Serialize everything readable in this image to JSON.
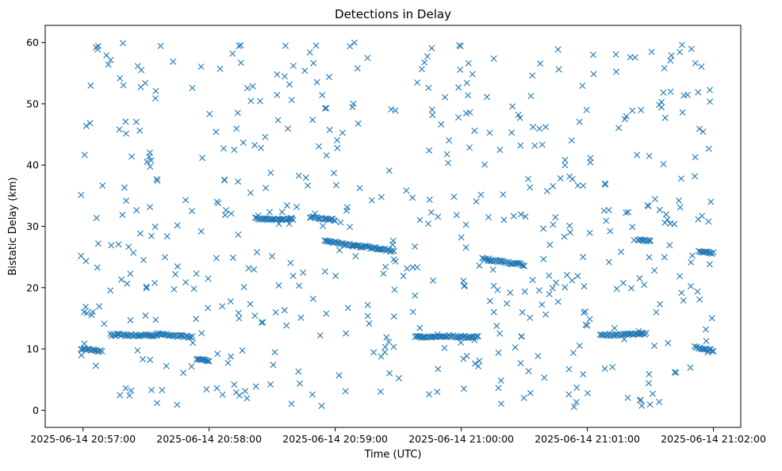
{
  "chart_data": {
    "type": "scatter",
    "title": "Detections in Delay",
    "xlabel": "Time (UTC)",
    "ylabel": "Bistatic Delay (km)",
    "x_axis_type": "datetime",
    "xlim": [
      "2025-06-14 20:56:42",
      "2025-06-14 21:02:13"
    ],
    "ylim": [
      -2.8,
      62.8
    ],
    "x_ticks": [
      "2025-06-14 20:57:00",
      "2025-06-14 20:58:00",
      "2025-06-14 20:59:00",
      "2025-06-14 21:00:00",
      "2025-06-14 21:01:00",
      "2025-06-14 21:02:00"
    ],
    "y_ticks": [
      0,
      10,
      20,
      30,
      40,
      50,
      60
    ],
    "grid": false,
    "marker": "x",
    "color": "#1f77b4",
    "tracks": [
      {
        "x_start": "2025-06-14 20:56:59",
        "x_end": "2025-06-14 20:57:09",
        "y_start": 10.0,
        "y_end": 9.6
      },
      {
        "x_start": "2025-06-14 20:57:13",
        "x_end": "2025-06-14 20:57:35",
        "y_start": 12.3,
        "y_end": 12.2
      },
      {
        "x_start": "2025-06-14 20:57:35",
        "x_end": "2025-06-14 20:57:52",
        "y_start": 12.5,
        "y_end": 11.9
      },
      {
        "x_start": "2025-06-14 20:57:54",
        "x_end": "2025-06-14 20:58:00",
        "y_start": 8.3,
        "y_end": 8.0
      },
      {
        "x_start": "2025-06-14 20:58:22",
        "x_end": "2025-06-14 20:58:40",
        "y_start": 31.3,
        "y_end": 31.1
      },
      {
        "x_start": "2025-06-14 20:58:48",
        "x_end": "2025-06-14 20:59:00",
        "y_start": 31.5,
        "y_end": 31.0
      },
      {
        "x_start": "2025-06-14 20:58:55",
        "x_end": "2025-06-14 20:59:28",
        "y_start": 27.6,
        "y_end": 26.0
      },
      {
        "x_start": "2025-06-14 20:59:38",
        "x_end": "2025-06-14 20:59:48",
        "y_start": 12.0,
        "y_end": 12.0
      },
      {
        "x_start": "2025-06-14 20:59:48",
        "x_end": "2025-06-14 21:00:08",
        "y_start": 12.2,
        "y_end": 11.9
      },
      {
        "x_start": "2025-06-14 21:00:10",
        "x_end": "2025-06-14 21:00:30",
        "y_start": 24.7,
        "y_end": 23.7
      },
      {
        "x_start": "2025-06-14 21:01:06",
        "x_end": "2025-06-14 21:01:28",
        "y_start": 12.2,
        "y_end": 12.5
      },
      {
        "x_start": "2025-06-14 21:01:24",
        "x_end": "2025-06-14 21:01:30",
        "y_start": 27.8,
        "y_end": 27.6
      },
      {
        "x_start": "2025-06-14 21:01:51",
        "x_end": "2025-06-14 21:02:00",
        "y_start": 10.3,
        "y_end": 9.7
      },
      {
        "x_start": "2025-06-14 21:01:53",
        "x_end": "2025-06-14 21:02:00",
        "y_start": 25.9,
        "y_end": 25.6
      }
    ],
    "scattered_detections": {
      "count_approx": 560,
      "time_range": [
        "2025-06-14 20:56:59",
        "2025-06-14 21:02:00"
      ],
      "delay_range": [
        0.5,
        60
      ]
    }
  }
}
